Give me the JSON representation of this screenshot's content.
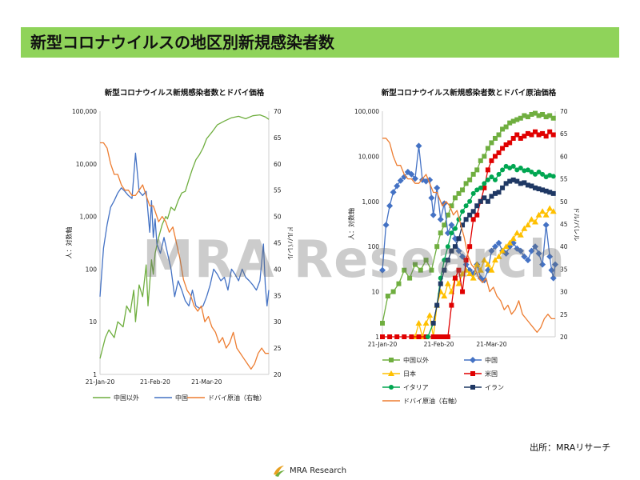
{
  "slide_title": "新型コロナウイルスの地区別新規感染者数",
  "source_label": "出所：MRAリサーチ",
  "watermark": "MRA Research",
  "brand": "MRA Research",
  "colors": {
    "title_bg": "#8fd35a",
    "china_outside": "#6fae3f",
    "china": "#4472c4",
    "dubai": "#ed7d31",
    "japan": "#ffc000",
    "usa": "#e00000",
    "italy": "#00a651",
    "iran": "#1f3864"
  },
  "chart_data": [
    {
      "type": "line",
      "title": "新型コロナウイルス新規感染者数とドバイ価格",
      "xlabel": "",
      "ylabel": "人：対数軸",
      "y2label": "ドル/バレル",
      "y_scale": "log",
      "ylim": [
        1,
        100000
      ],
      "y2lim": [
        20,
        70
      ],
      "y_ticks": [
        "1",
        "10",
        "100",
        "1,000",
        "10,000",
        "100,000"
      ],
      "y2_ticks": [
        "20",
        "25",
        "30",
        "35",
        "40",
        "45",
        "50",
        "55",
        "60",
        "65",
        "70"
      ],
      "x_tick_labels": [
        "21-Jan-20",
        "21-Feb-20",
        "21-Mar-20"
      ],
      "x_ticks_day": [
        0,
        31,
        60
      ],
      "x_range_day": [
        0,
        95
      ],
      "legend_position": "bottom",
      "series": [
        {
          "name": "中国以外",
          "axis": "left",
          "color": "#6fae3f",
          "marker": "none",
          "x": [
            0,
            3,
            5,
            8,
            10,
            13,
            15,
            17,
            19,
            20,
            22,
            24,
            26,
            27,
            29,
            30,
            31,
            33,
            35,
            37,
            38,
            40,
            42,
            44,
            46,
            48,
            50,
            52,
            54,
            56,
            58,
            60,
            63,
            66,
            70,
            74,
            78,
            82,
            86,
            90,
            93,
            95
          ],
          "y": [
            2,
            5,
            7,
            5,
            10,
            8,
            20,
            15,
            40,
            10,
            50,
            30,
            120,
            20,
            150,
            80,
            200,
            400,
            700,
            1000,
            900,
            1500,
            1300,
            2000,
            2800,
            3000,
            5000,
            8000,
            12000,
            15000,
            20000,
            30000,
            40000,
            55000,
            65000,
            75000,
            80000,
            72000,
            82000,
            85000,
            78000,
            70000
          ]
        },
        {
          "name": "中国",
          "axis": "left",
          "color": "#4472c4",
          "marker": "none",
          "x": [
            0,
            2,
            4,
            6,
            8,
            10,
            12,
            14,
            16,
            18,
            20,
            22,
            24,
            26,
            27,
            28,
            29,
            30,
            31,
            32,
            34,
            36,
            38,
            40,
            42,
            44,
            46,
            48,
            50,
            52,
            54,
            56,
            58,
            60,
            62,
            64,
            66,
            68,
            70,
            72,
            74,
            76,
            78,
            80,
            82,
            84,
            86,
            88,
            90,
            92,
            93,
            94,
            95
          ],
          "y": [
            30,
            250,
            700,
            1500,
            2000,
            2800,
            3500,
            3000,
            2500,
            2200,
            16000,
            3000,
            2500,
            3000,
            1200,
            500,
            2000,
            400,
            900,
            300,
            200,
            400,
            200,
            100,
            30,
            60,
            40,
            25,
            20,
            40,
            20,
            18,
            20,
            30,
            50,
            100,
            80,
            60,
            70,
            40,
            100,
            80,
            60,
            100,
            70,
            60,
            50,
            40,
            60,
            300,
            50,
            20,
            40
          ]
        },
        {
          "name": "ドバイ原油（右軸）",
          "axis": "right",
          "color": "#ed7d31",
          "marker": "none",
          "x": [
            0,
            2,
            4,
            6,
            8,
            10,
            12,
            14,
            16,
            18,
            20,
            22,
            24,
            26,
            28,
            30,
            31,
            33,
            35,
            37,
            39,
            41,
            43,
            45,
            47,
            49,
            51,
            53,
            55,
            57,
            59,
            61,
            63,
            65,
            67,
            69,
            71,
            73,
            75,
            77,
            79,
            81,
            83,
            85,
            87,
            89,
            91,
            93,
            95
          ],
          "y": [
            64,
            64,
            63,
            60,
            58,
            58,
            56,
            55,
            55,
            54,
            54,
            55,
            56,
            54,
            52,
            52,
            51,
            49,
            50,
            49,
            47,
            48,
            45,
            42,
            38,
            36,
            35,
            33,
            32,
            33,
            30,
            31,
            29,
            28,
            26,
            27,
            25,
            26,
            28,
            25,
            24,
            23,
            22,
            21,
            22,
            24,
            25,
            24,
            24
          ]
        }
      ],
      "legend": [
        "中国以外",
        "中国",
        "ドバイ原油（右軸）"
      ]
    },
    {
      "type": "line",
      "title": "新型コロナウイルス新規感染者数とドバイ原油価格",
      "xlabel": "",
      "ylabel": "人：対数軸",
      "y2label": "ドル/バレル",
      "y_scale": "log",
      "ylim": [
        1,
        100000
      ],
      "y2lim": [
        20,
        70
      ],
      "y_ticks": [
        "1",
        "10",
        "100",
        "1,000",
        "10,000",
        "100,000"
      ],
      "y2_ticks": [
        "20",
        "25",
        "30",
        "35",
        "40",
        "45",
        "50",
        "55",
        "60",
        "65",
        "70"
      ],
      "x_tick_labels": [
        "21-Jan-20",
        "21-Feb-20",
        "21-Mar-20"
      ],
      "x_ticks_day": [
        0,
        31,
        60
      ],
      "x_range_day": [
        0,
        95
      ],
      "legend_position": "bottom",
      "series": [
        {
          "name": "中国以外",
          "axis": "left",
          "color": "#6fae3f",
          "marker": "square",
          "x": [
            0,
            3,
            6,
            9,
            12,
            15,
            18,
            21,
            24,
            27,
            30,
            32,
            34,
            36,
            38,
            40,
            42,
            44,
            46,
            48,
            50,
            52,
            54,
            56,
            58,
            60,
            62,
            64,
            66,
            68,
            70,
            72,
            74,
            76,
            78,
            80,
            82,
            84,
            86,
            88,
            90,
            92,
            94
          ],
          "y": [
            2,
            8,
            10,
            15,
            30,
            20,
            40,
            30,
            50,
            30,
            100,
            200,
            300,
            500,
            800,
            1200,
            1500,
            1800,
            2500,
            3000,
            4000,
            5000,
            8000,
            10000,
            15000,
            20000,
            25000,
            30000,
            40000,
            45000,
            55000,
            60000,
            65000,
            70000,
            80000,
            75000,
            85000,
            90000,
            80000,
            85000,
            75000,
            80000,
            70000
          ]
        },
        {
          "name": "中国",
          "axis": "left",
          "color": "#4472c4",
          "marker": "diamond",
          "x": [
            0,
            2,
            4,
            6,
            8,
            10,
            12,
            14,
            16,
            18,
            20,
            22,
            24,
            26,
            27,
            28,
            30,
            32,
            34,
            36,
            38,
            40,
            42,
            44,
            46,
            48,
            50,
            52,
            54,
            56,
            58,
            60,
            62,
            64,
            66,
            68,
            70,
            72,
            74,
            76,
            78,
            80,
            82,
            84,
            86,
            88,
            90,
            92,
            93,
            94,
            95
          ],
          "y": [
            30,
            300,
            800,
            1600,
            2200,
            2900,
            3500,
            4500,
            4000,
            3200,
            17000,
            3000,
            2800,
            3000,
            1200,
            500,
            2000,
            400,
            900,
            200,
            300,
            150,
            80,
            60,
            40,
            30,
            25,
            40,
            20,
            18,
            30,
            80,
            100,
            120,
            80,
            70,
            100,
            120,
            90,
            80,
            60,
            50,
            80,
            100,
            70,
            40,
            300,
            60,
            30,
            20,
            40
          ]
        },
        {
          "name": "日本",
          "axis": "left",
          "color": "#ffc000",
          "marker": "triangle",
          "x": [
            18,
            20,
            22,
            24,
            26,
            28,
            30,
            32,
            34,
            36,
            38,
            40,
            42,
            44,
            46,
            48,
            50,
            52,
            54,
            56,
            58,
            60,
            62,
            64,
            66,
            68,
            70,
            72,
            74,
            76,
            78,
            80,
            82,
            84,
            86,
            88,
            90,
            92,
            94
          ],
          "y": [
            1,
            2,
            1,
            2,
            3,
            1,
            5,
            10,
            8,
            15,
            10,
            20,
            15,
            25,
            30,
            25,
            20,
            40,
            30,
            50,
            40,
            30,
            50,
            60,
            80,
            100,
            120,
            150,
            200,
            180,
            250,
            300,
            400,
            350,
            500,
            600,
            500,
            700,
            600
          ]
        },
        {
          "name": "米国",
          "axis": "left",
          "color": "#e00000",
          "marker": "square",
          "x": [
            0,
            4,
            8,
            12,
            16,
            20,
            24,
            28,
            30,
            32,
            34,
            36,
            38,
            40,
            42,
            44,
            46,
            48,
            50,
            52,
            54,
            56,
            58,
            60,
            62,
            64,
            66,
            68,
            70,
            72,
            74,
            76,
            78,
            80,
            82,
            84,
            86,
            88,
            90,
            92,
            94
          ],
          "y": [
            1,
            1,
            1,
            1,
            1,
            1,
            1,
            1,
            1,
            1,
            1,
            1,
            5,
            20,
            30,
            10,
            50,
            100,
            400,
            500,
            1000,
            2000,
            5000,
            8000,
            10000,
            12000,
            15000,
            18000,
            20000,
            25000,
            30000,
            25000,
            28000,
            32000,
            30000,
            35000,
            30000,
            32000,
            28000,
            35000,
            30000
          ]
        },
        {
          "name": "イタリア",
          "axis": "left",
          "color": "#00a651",
          "marker": "circle",
          "x": [
            25,
            28,
            30,
            32,
            34,
            36,
            38,
            40,
            42,
            44,
            46,
            48,
            50,
            52,
            54,
            56,
            58,
            60,
            62,
            64,
            66,
            68,
            70,
            72,
            74,
            76,
            78,
            80,
            82,
            84,
            86,
            88,
            90,
            92,
            94
          ],
          "y": [
            1,
            2,
            5,
            20,
            50,
            100,
            200,
            250,
            400,
            600,
            800,
            1000,
            1500,
            1800,
            2000,
            2500,
            3000,
            3500,
            3000,
            4000,
            5000,
            6000,
            5500,
            6000,
            5000,
            5500,
            4800,
            5000,
            4500,
            4000,
            4500,
            4000,
            3500,
            3800,
            3600
          ]
        },
        {
          "name": "イラン",
          "axis": "left",
          "color": "#1f3864",
          "marker": "square",
          "x": [
            28,
            30,
            32,
            34,
            36,
            38,
            40,
            42,
            44,
            46,
            48,
            50,
            52,
            54,
            56,
            58,
            60,
            62,
            64,
            66,
            68,
            70,
            72,
            74,
            76,
            78,
            80,
            82,
            84,
            86,
            88,
            90,
            92,
            94
          ],
          "y": [
            2,
            5,
            15,
            30,
            50,
            80,
            100,
            150,
            300,
            400,
            500,
            600,
            800,
            1000,
            1200,
            1000,
            1300,
            1500,
            1600,
            2000,
            2500,
            2800,
            3000,
            2800,
            2500,
            2600,
            2300,
            2200,
            2000,
            1900,
            1800,
            1700,
            1600,
            1500
          ]
        },
        {
          "name": "ドバイ原油（右軸）",
          "axis": "right",
          "color": "#ed7d31",
          "marker": "none",
          "x": [
            0,
            2,
            4,
            6,
            8,
            10,
            12,
            14,
            16,
            18,
            20,
            22,
            24,
            26,
            28,
            30,
            31,
            33,
            35,
            37,
            39,
            41,
            43,
            45,
            47,
            49,
            51,
            53,
            55,
            57,
            59,
            61,
            63,
            65,
            67,
            69,
            71,
            73,
            75,
            77,
            79,
            81,
            83,
            85,
            87,
            89,
            91,
            93,
            95
          ],
          "y": [
            64,
            64,
            63,
            60,
            58,
            58,
            56,
            55,
            55,
            54,
            54,
            55,
            56,
            54,
            52,
            52,
            51,
            49,
            50,
            49,
            47,
            48,
            45,
            42,
            38,
            36,
            35,
            33,
            32,
            33,
            30,
            31,
            29,
            28,
            26,
            27,
            25,
            26,
            28,
            25,
            24,
            23,
            22,
            21,
            22,
            24,
            25,
            24,
            24
          ]
        }
      ],
      "legend": [
        "中国以外",
        "中国",
        "日本",
        "米国",
        "イタリア",
        "イラン",
        "ドバイ原油（右軸）"
      ]
    }
  ]
}
